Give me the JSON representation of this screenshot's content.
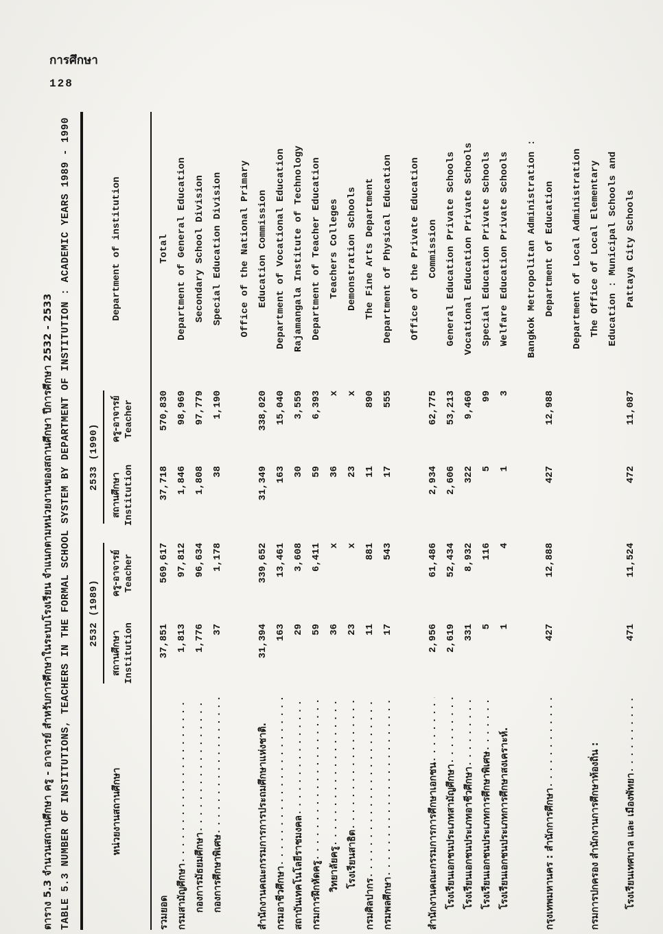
{
  "page": {
    "header_thai": "การศึกษา",
    "page_number": "128"
  },
  "title": {
    "thai": "ตาราง 5.3 จำนวนสถานศึกษา ครู - อาจารย์ สำหรับการศึกษาในระบบโรงเรียน จำแนกตามหน่วยงานของสถานศึกษา ปีการศึกษา 2532 - 2533",
    "english": "TABLE 5.3 NUMBER OF INSTITUTIONS, TEACHERS IN THE FORMAL SCHOOL SYSTEM BY DEPARTMENT OF INSTITUTION : ACADEMIC YEARS 1989 - 1990"
  },
  "table": {
    "leader_dots": "......................................................",
    "col_headers": {
      "thai_unit": "หน่วยงานสถานศึกษา",
      "english_unit": "Department of institution",
      "year_groups": [
        {
          "label": "2532 (1989)"
        },
        {
          "label": "2533 (1990)"
        }
      ],
      "sub_institution_thai": "สถานศึกษา",
      "sub_institution_eng": "Institution",
      "sub_teacher_thai": "ครู-อาจารย์",
      "sub_teacher_eng": "Teacher"
    },
    "rows": [
      {
        "thai": "รวมยอด",
        "thaiCenter": true,
        "c": [
          "37,851",
          "569,617",
          "37,718",
          "570,830"
        ],
        "eng": "Total"
      },
      {
        "thai": "กรมสามัญศึกษา",
        "leader": true,
        "c": [
          "1,813",
          "97,812",
          "1,846",
          "98,969"
        ],
        "eng": "Department of General Education"
      },
      {
        "thai": "กองการมัธยมศึกษา",
        "leader": true,
        "indent": 25,
        "c": [
          "1,776",
          "96,634",
          "1,808",
          "97,779"
        ],
        "eng": "Secondary School Division"
      },
      {
        "thai": "กองการศึกษาพิเศษ",
        "leader": true,
        "indent": 25,
        "c": [
          "37",
          "1,178",
          "38",
          "1,190"
        ],
        "eng": "Special Education Division"
      },
      {
        "spacer": true
      },
      {
        "eng": "Office of the National Primary"
      },
      {
        "thai": "สำนักงานคณะกรรมการการประถมศึกษาแห่งชาติ.",
        "c": [
          "31,394",
          "339,652",
          "31,349",
          "338,020"
        ],
        "eng": "Education Commission"
      },
      {
        "thai": "กรมอาชีวศึกษา",
        "leader": true,
        "c": [
          "163",
          "13,461",
          "163",
          "15,040"
        ],
        "eng": "Department of Vocational Education"
      },
      {
        "thai": "สถาบันเทคโนโลยีราชมงคล",
        "leader": true,
        "c": [
          "29",
          "3,608",
          "30",
          "3,559"
        ],
        "eng": "Rajamangala Institute of Technology"
      },
      {
        "thai": "กรมการฝึกหัดครู",
        "leader": true,
        "c": [
          "59",
          "6,411",
          "59",
          "6,393"
        ],
        "eng": "Department of Teacher Education"
      },
      {
        "thai": "วิทยาลัยครู",
        "leader": true,
        "indent": 55,
        "c": [
          "36",
          "x",
          "36",
          "x"
        ],
        "eng": "Teachers Colleges"
      },
      {
        "thai": "โรงเรียนสาธิต",
        "leader": true,
        "indent": 60,
        "c": [
          "23",
          "x",
          "23",
          "x"
        ],
        "eng": "Demonstration Schools"
      },
      {
        "thai": "กรมศิลปากร",
        "leader": true,
        "c": [
          "11",
          "881",
          "11",
          "890"
        ],
        "eng": "The Fine Arts Department"
      },
      {
        "thai": "กรมพลศึกษา",
        "leader": true,
        "c": [
          "17",
          "543",
          "17",
          "555"
        ],
        "eng": "Department of Physical Education"
      },
      {
        "spacer": true
      },
      {
        "eng": "Office of the Private Education"
      },
      {
        "thai": "สำนักงานคณะกรรมการการศึกษาเอกชน",
        "leader": true,
        "c": [
          "2,956",
          "61,486",
          "2,934",
          "62,775"
        ],
        "eng": "Commission"
      },
      {
        "thai": "โรงเรียนเอกชนประเภทสามัญศึกษา",
        "leader": true,
        "indent": 30,
        "c": [
          "2,619",
          "52,434",
          "2,606",
          "53,213"
        ],
        "eng": "General Education Private Schools"
      },
      {
        "thai": "โรงเรียนเอกชนประเภทอาชีวศึกษา",
        "leader": true,
        "indent": 30,
        "c": [
          "331",
          "8,932",
          "322",
          "9,460"
        ],
        "eng": "Vocational Education Private Schools"
      },
      {
        "thai": "โรงเรียนเอกชนประเภทการศึกษาพิเศษ",
        "leader": true,
        "indent": 30,
        "c": [
          "5",
          "116",
          "5",
          "99"
        ],
        "eng": "Special Education Private Schools"
      },
      {
        "thai": "โรงเรียนเอกชนประเภทการศึกษาสงเคราะห์.",
        "indent": 30,
        "c": [
          "1",
          "4",
          "1",
          "3"
        ],
        "eng": "Welfare Education Private Schools"
      },
      {
        "spacer": true
      },
      {
        "eng": "Bangkok Metropolitan Administration :"
      },
      {
        "thai": "กรุงเทพมหานคร : สำนักการศึกษา",
        "leader": true,
        "c": [
          "427",
          "12,888",
          "427",
          "12,988"
        ],
        "eng": "Department of Education"
      },
      {
        "spacer": true
      },
      {
        "eng": "Department of Local Administration"
      },
      {
        "thai": "กรมการปกครอง สำนักงานการศึกษาท้องถิ่น :",
        "eng": "The Office of Local Elementary"
      },
      {
        "eng": "Education : Municipal Schools and"
      },
      {
        "thai": "โรงเรียนเทศบาล และ เมืองพัทยา",
        "leader": true,
        "indent": 30,
        "c": [
          "471",
          "11,524",
          "472",
          "11,087"
        ],
        "eng": "Pattaya City Schools"
      }
    ]
  }
}
